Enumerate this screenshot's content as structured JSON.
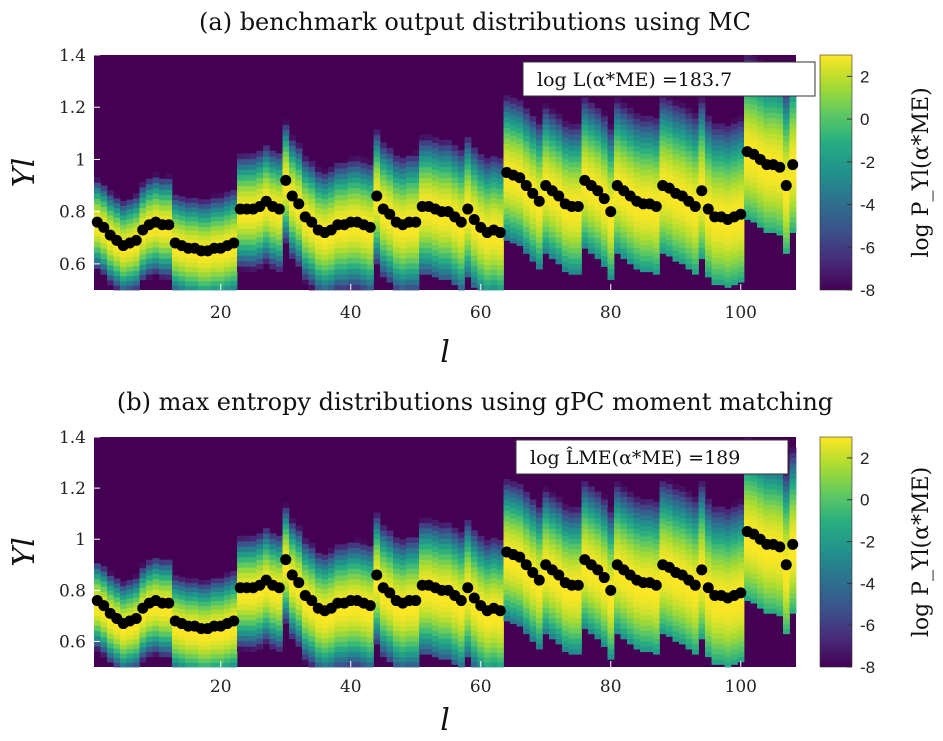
{
  "chart_data": [
    {
      "type": "heatmap",
      "title": "(a) benchmark output distributions using MC",
      "xlabel": "l",
      "ylabel": "Y_l",
      "xlim": [
        1,
        108
      ],
      "ylim": [
        0.5,
        1.4
      ],
      "xticks": [
        20,
        40,
        60,
        80,
        100
      ],
      "yticks": [
        0.6,
        0.8,
        1,
        1.2,
        1.4
      ],
      "ytick_labels": [
        "0.6",
        "0.8",
        "1",
        "1.2",
        "1.4"
      ],
      "annotation": "log L(α*ME) =183.7",
      "colorbar": {
        "label": "log P_Yl(α*ME)",
        "range": [
          -8,
          3
        ],
        "ticks": [
          2,
          0,
          -2,
          -4,
          -6,
          -8
        ],
        "colormap": "viridis"
      },
      "points_color": "#000000"
    },
    {
      "type": "heatmap",
      "title": "(b) max entropy distributions using gPC moment matching",
      "xlabel": "l",
      "ylabel": "Y_l",
      "xlim": [
        1,
        108
      ],
      "ylim": [
        0.5,
        1.4
      ],
      "xticks": [
        20,
        40,
        60,
        80,
        100
      ],
      "yticks": [
        0.6,
        0.8,
        1,
        1.2,
        1.4
      ],
      "ytick_labels": [
        "0.6",
        "0.8",
        "1",
        "1.2",
        "1.4"
      ],
      "annotation": "log L̂ME(α*ME) =189",
      "colorbar": {
        "label": "log P_Yl(α*ME)",
        "range": [
          -8,
          3
        ],
        "ticks": [
          2,
          0,
          -2,
          -4,
          -6,
          -8
        ],
        "colormap": "viridis"
      },
      "points_color": "#000000"
    }
  ],
  "observations": {
    "x": [
      1,
      2,
      3,
      4,
      5,
      6,
      7,
      8,
      9,
      10,
      11,
      12,
      13,
      14,
      15,
      16,
      17,
      18,
      19,
      20,
      21,
      22,
      23,
      24,
      25,
      26,
      27,
      28,
      29,
      30,
      31,
      32,
      33,
      34,
      35,
      36,
      37,
      38,
      39,
      40,
      41,
      42,
      43,
      44,
      45,
      46,
      47,
      48,
      49,
      50,
      51,
      52,
      53,
      54,
      55,
      56,
      57,
      58,
      59,
      60,
      61,
      62,
      63,
      64,
      65,
      66,
      67,
      68,
      69,
      70,
      71,
      72,
      73,
      74,
      75,
      76,
      77,
      78,
      79,
      80,
      81,
      82,
      83,
      84,
      85,
      86,
      87,
      88,
      89,
      90,
      91,
      92,
      93,
      94,
      95,
      96,
      97,
      98,
      99,
      100,
      101,
      102,
      103,
      104,
      105,
      106,
      107,
      108
    ],
    "y": [
      0.76,
      0.74,
      0.71,
      0.69,
      0.67,
      0.68,
      0.69,
      0.73,
      0.75,
      0.76,
      0.75,
      0.75,
      0.68,
      0.67,
      0.66,
      0.66,
      0.65,
      0.65,
      0.66,
      0.66,
      0.67,
      0.68,
      0.81,
      0.81,
      0.81,
      0.82,
      0.84,
      0.82,
      0.81,
      0.92,
      0.86,
      0.83,
      0.78,
      0.76,
      0.73,
      0.72,
      0.73,
      0.75,
      0.75,
      0.76,
      0.76,
      0.75,
      0.74,
      0.86,
      0.81,
      0.79,
      0.76,
      0.75,
      0.76,
      0.76,
      0.82,
      0.82,
      0.81,
      0.8,
      0.8,
      0.78,
      0.76,
      0.81,
      0.77,
      0.74,
      0.72,
      0.73,
      0.72,
      0.95,
      0.94,
      0.93,
      0.9,
      0.87,
      0.84,
      0.9,
      0.88,
      0.86,
      0.83,
      0.82,
      0.82,
      0.92,
      0.9,
      0.88,
      0.85,
      0.8,
      0.9,
      0.88,
      0.86,
      0.84,
      0.83,
      0.83,
      0.82,
      0.9,
      0.89,
      0.87,
      0.86,
      0.84,
      0.82,
      0.88,
      0.81,
      0.78,
      0.78,
      0.77,
      0.78,
      0.79,
      1.03,
      1.02,
      1.0,
      0.98,
      0.98,
      0.97,
      0.9,
      0.98
    ]
  }
}
